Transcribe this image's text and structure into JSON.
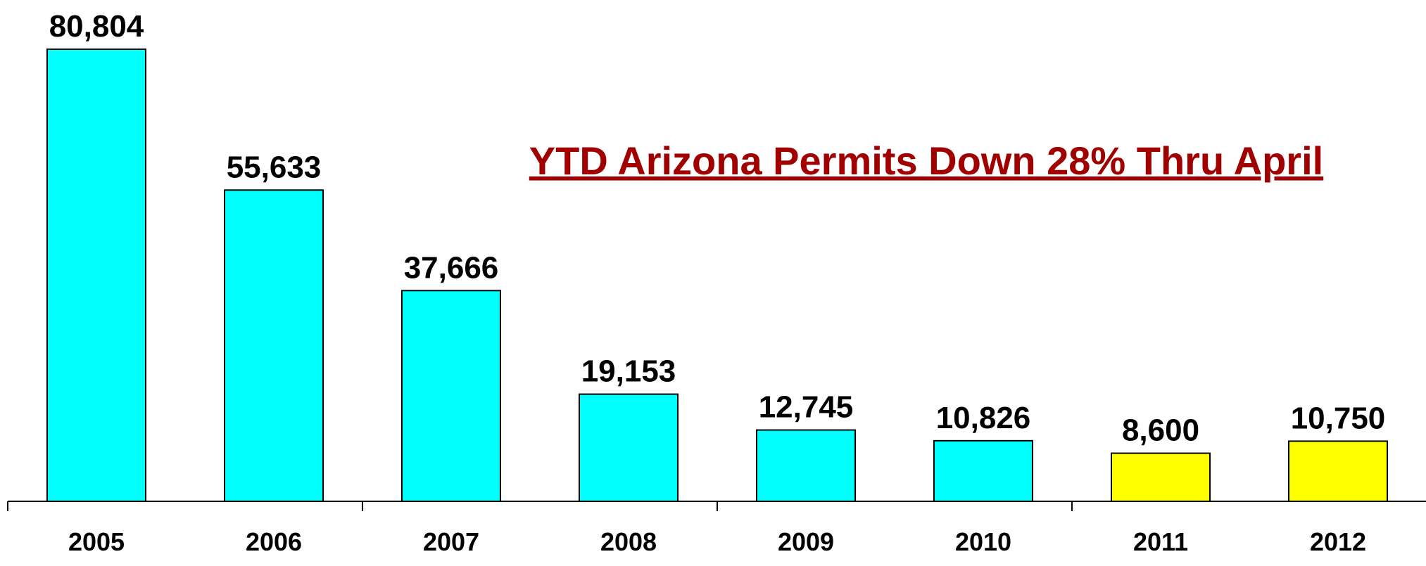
{
  "chart_data": {
    "type": "bar",
    "title": "YTD Arizona Permits Down 28% Thru April",
    "categories": [
      "2005",
      "2006",
      "2007",
      "2008",
      "2009",
      "2010",
      "2011",
      "2012"
    ],
    "values": [
      80804,
      55633,
      37666,
      19153,
      12745,
      10826,
      8600,
      10750
    ],
    "value_labels": [
      "80,804",
      "55,633",
      "37,666",
      "19,153",
      "12,745",
      "10,826",
      "8,600",
      "10,750"
    ],
    "colors": [
      "#00ffff",
      "#00ffff",
      "#00ffff",
      "#00ffff",
      "#00ffff",
      "#00ffff",
      "#ffff00",
      "#ffff00"
    ]
  }
}
